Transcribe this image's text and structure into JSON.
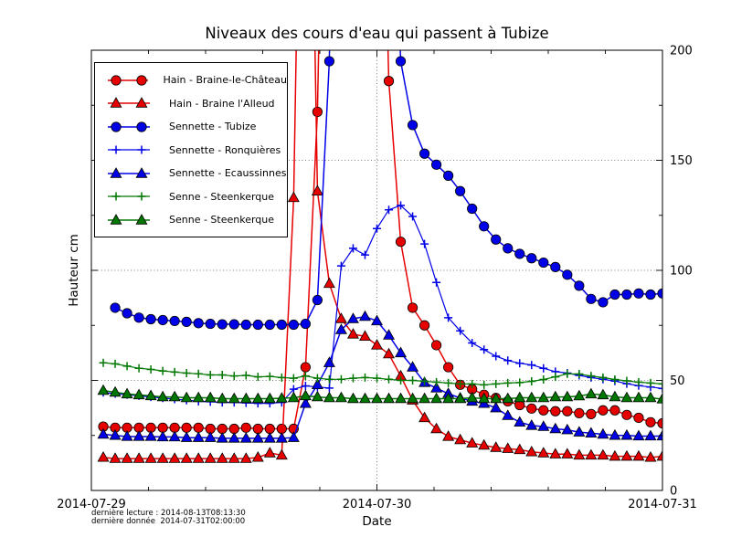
{
  "figure": {
    "title": "Niveaux des cours d'eau qui passent à Tubize",
    "xlabel": "Date",
    "ylabel": "Hauteur cm",
    "annotations": {
      "line1": "dernière lecture : 2014-08-13T08:13:30",
      "line2": "dernière donnée  2014-07-31T02:00:00"
    }
  },
  "chart_data": {
    "type": "line",
    "title": "Niveaux des cours d'eau qui passent à Tubize",
    "xlabel": "Date",
    "ylabel": "Hauteur cm",
    "x_unit": "hours since 2014-07-29 00:00",
    "xlim": [
      0,
      48
    ],
    "ylim": [
      0,
      200
    ],
    "y_ticks": [
      0,
      50,
      100,
      150,
      200
    ],
    "y_minor_step": 25,
    "x_minor_step": 4.8,
    "x_ticks": [
      {
        "pos": 0,
        "label": "2014-07-29"
      },
      {
        "pos": 24,
        "label": "2014-07-30"
      },
      {
        "pos": 48,
        "label": "2014-07-31"
      }
    ],
    "grid": {
      "h_lines": [
        50,
        100,
        150
      ],
      "v_lines": [
        24
      ]
    },
    "legend_position": "upper left",
    "note": "values above 200 are clipped by the axes in the original figure",
    "series": [
      {
        "id": "hain-braine-le-chateau",
        "name": "Hain - Braine-le-Château",
        "color": "#e60000",
        "marker": "circle",
        "x0": 1,
        "values": [
          29,
          28.5,
          28.5,
          28.5,
          28.5,
          28.5,
          28.5,
          28.5,
          28.5,
          28,
          28,
          28,
          28.5,
          28,
          28,
          28,
          28,
          56,
          172,
          450,
          520,
          540,
          500,
          400,
          186,
          113,
          83,
          75,
          66,
          56,
          48,
          46,
          43.5,
          42,
          40.5,
          38.8,
          37.2,
          36.4,
          36,
          36,
          35.1,
          34.7,
          36.4,
          36.4,
          34.3,
          33,
          31,
          30.5
        ]
      },
      {
        "id": "hain-braine-l-alleud",
        "name": "Hain - Braine l'Alleud",
        "color": "#e60000",
        "marker": "triangle",
        "x0": 1,
        "values": [
          15,
          14.5,
          14.5,
          14.5,
          14.5,
          14.5,
          14.5,
          14.5,
          14.5,
          14.5,
          14.5,
          14.5,
          14.5,
          15,
          17,
          16,
          133,
          450,
          136,
          94,
          78,
          71,
          70,
          66,
          62,
          52,
          41,
          33,
          28,
          24.5,
          23,
          21.5,
          20.5,
          19.5,
          19,
          18.5,
          17.5,
          17,
          16.5,
          16.5,
          16,
          16,
          16,
          15.5,
          15.5,
          15.5,
          15,
          15.5
        ]
      },
      {
        "id": "sennette-tubize",
        "name": "Sennette - Tubize",
        "color": "#0000e6",
        "marker": "circle",
        "x0": 2,
        "values": [
          83,
          80.5,
          78.5,
          77.8,
          77.4,
          77,
          76.6,
          76,
          75.7,
          75.5,
          75.5,
          75.3,
          75.3,
          75.3,
          75.3,
          75.3,
          75.7,
          86.5,
          195,
          600,
          700,
          700,
          650,
          350,
          195,
          166,
          153,
          148,
          143,
          136,
          128,
          120,
          114,
          110,
          107.5,
          105.5,
          103.5,
          101.5,
          98,
          93,
          87,
          85.5,
          89,
          89,
          89.5,
          89,
          89.5
        ]
      },
      {
        "id": "sennette-ronquieres",
        "name": "Sennette - Ronquières",
        "color": "#0000e6",
        "marker": "plus",
        "x0": 1,
        "values": [
          44.5,
          44,
          43.5,
          43,
          42.5,
          42,
          41.5,
          41,
          40.5,
          40.3,
          40,
          40,
          39.8,
          39.6,
          39.6,
          40,
          46,
          47.5,
          47,
          46.5,
          102,
          110,
          107,
          119,
          127.5,
          129.5,
          124.5,
          112,
          94.5,
          78.5,
          72.5,
          67,
          64,
          61,
          59,
          57.8,
          57,
          55.5,
          54,
          53.3,
          52.3,
          51.3,
          50.5,
          49.7,
          48.5,
          47.6,
          47,
          46.3
        ]
      },
      {
        "id": "sennette-ecaussinnes",
        "name": "Sennette - Ecaussinnes",
        "color": "#0000e6",
        "marker": "triangle",
        "x0": 1,
        "values": [
          25.5,
          25,
          24.5,
          24.5,
          24.5,
          24.3,
          24.3,
          24,
          24,
          24,
          23.7,
          23.7,
          23.7,
          23.7,
          23.7,
          23.7,
          24,
          39.5,
          48,
          58,
          73,
          78,
          79,
          77,
          70.5,
          62.5,
          56,
          49,
          46.5,
          44,
          42,
          40.5,
          39.5,
          37.5,
          34,
          31,
          29.5,
          29,
          28,
          27.5,
          26.5,
          26,
          25.5,
          25,
          25,
          24.7,
          24.7,
          24.7
        ]
      },
      {
        "id": "senne-steenkerque-plus",
        "name": "Senne - Steenkerque",
        "color": "#007700",
        "marker": "plus",
        "x0": 1,
        "values": [
          58,
          57.5,
          56.5,
          55.5,
          55,
          54.3,
          53.8,
          53.3,
          53,
          52.5,
          52.5,
          52,
          52.3,
          51.6,
          51.8,
          51.3,
          51,
          52,
          51,
          50.5,
          50.5,
          51,
          51.3,
          51,
          50.5,
          50,
          50,
          49.6,
          49.2,
          48.8,
          48.4,
          48.4,
          48,
          48.4,
          48.8,
          49,
          49.6,
          50.4,
          51.6,
          53,
          52.9,
          52,
          51.3,
          50.4,
          49.8,
          49.2,
          48.8,
          48.4
        ]
      },
      {
        "id": "senne-steenkerque-tri",
        "name": "Senne - Steenkerque",
        "color": "#007700",
        "marker": "triangle",
        "x0": 1,
        "values": [
          45.4,
          44.6,
          43.8,
          43.4,
          43,
          42.5,
          42.5,
          42.1,
          42.1,
          42.1,
          41.7,
          41.7,
          41.7,
          41.7,
          41.7,
          41.9,
          42.1,
          43,
          42.5,
          42.1,
          42.1,
          41.7,
          41.7,
          41.7,
          41.7,
          41.7,
          41.7,
          41.7,
          41.7,
          41.7,
          41.7,
          42.1,
          41.7,
          41.7,
          41.7,
          42.1,
          42.1,
          42.1,
          42.5,
          42.5,
          42.9,
          43.8,
          43.4,
          42.5,
          42.1,
          42.1,
          42.1,
          41.5
        ]
      }
    ]
  }
}
